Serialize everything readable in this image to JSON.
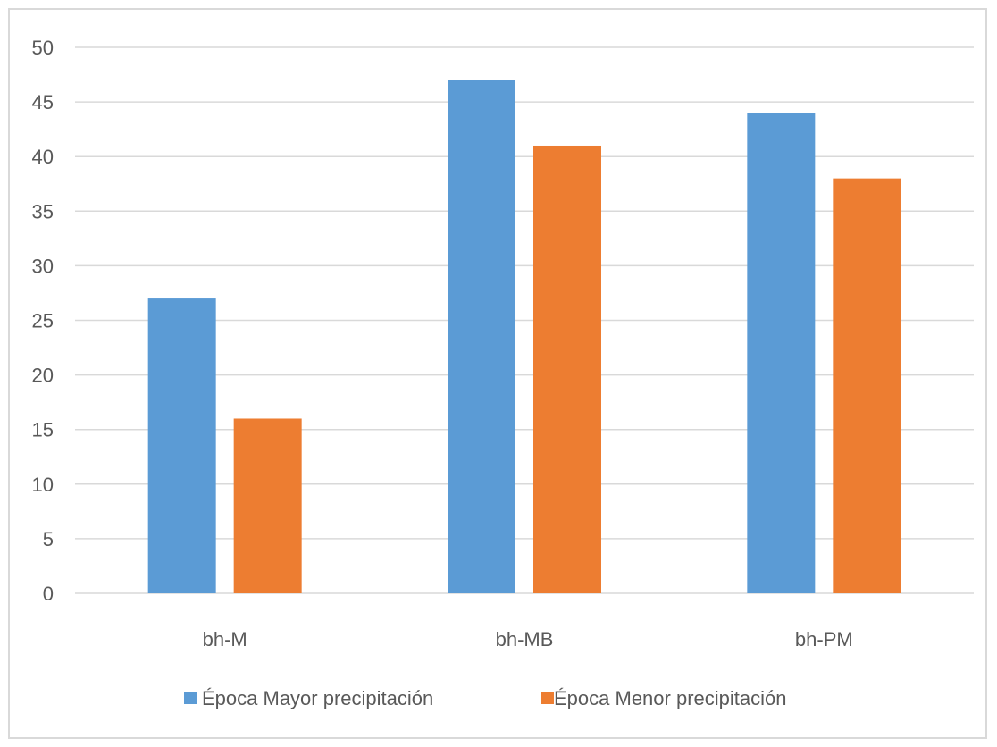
{
  "chart_data": {
    "type": "bar",
    "title": "",
    "xlabel": "",
    "ylabel": "",
    "categories": [
      "bh-M",
      "bh-MB",
      "bh-PM"
    ],
    "series": [
      {
        "name": "Época  Mayor precipitación",
        "color": "#5b9bd5",
        "values": [
          27,
          47,
          44
        ]
      },
      {
        "name": "Época  Menor precipitación",
        "color": "#ed7d31",
        "values": [
          16,
          41,
          38
        ]
      }
    ],
    "ylim": [
      0,
      50
    ],
    "yticks": [
      0,
      5,
      10,
      15,
      20,
      25,
      30,
      35,
      40,
      45,
      50
    ],
    "grid": true,
    "legend_position": "bottom",
    "gridline_color": "#d9d9d9"
  }
}
